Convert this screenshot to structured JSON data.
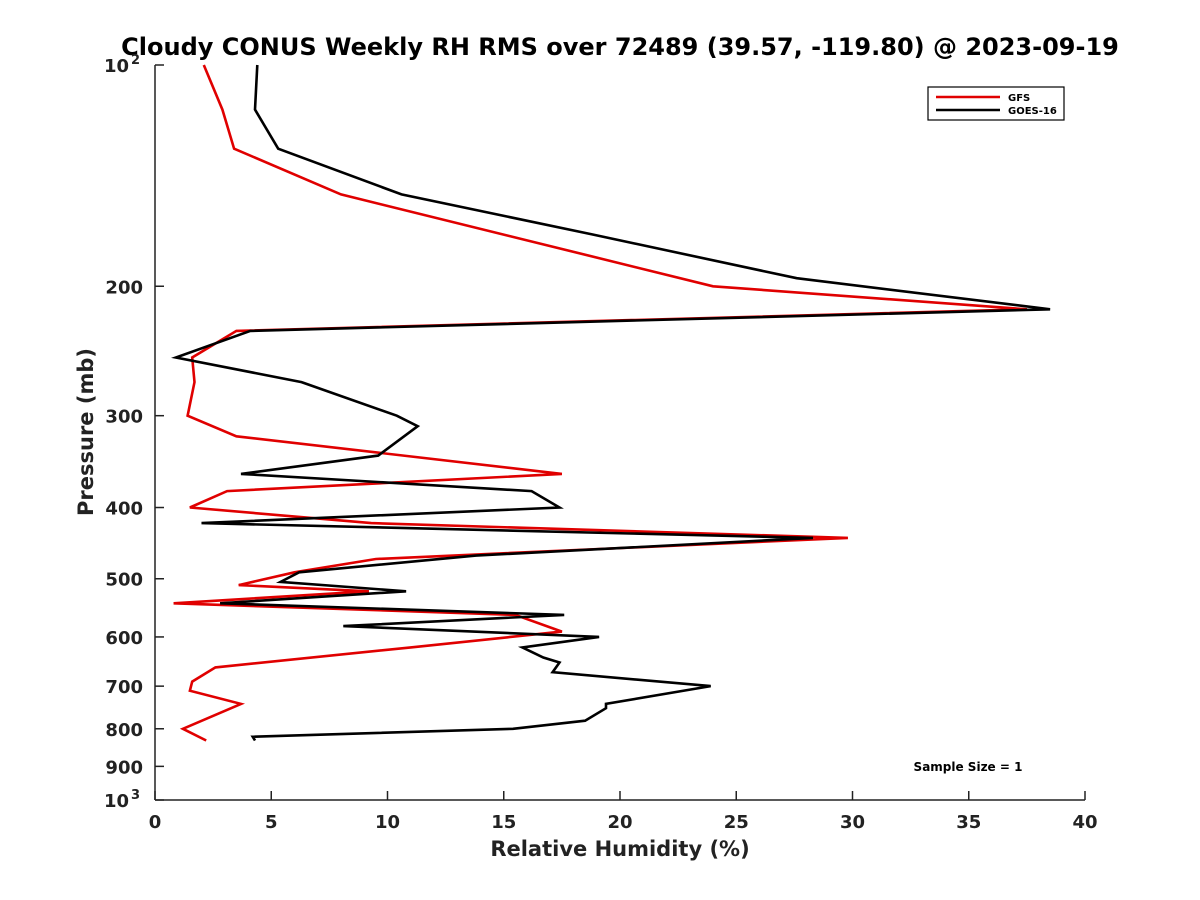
{
  "chart_data": {
    "type": "line",
    "title": "Cloudy CONUS Weekly RH RMS over 72489 (39.57, -119.80) @ 2023-09-19",
    "xlabel": "Relative Humidity (%)",
    "ylabel": "Pressure (mb)",
    "xlim": [
      0,
      40
    ],
    "ylim": [
      1000,
      100
    ],
    "yscale": "log",
    "ydirection": "reversed",
    "x_ticks": [
      "0",
      "5",
      "10",
      "15",
      "20",
      "25",
      "30",
      "35",
      "40"
    ],
    "y_ticks": [
      {
        "value": 100,
        "label": "10",
        "sup": "2"
      },
      {
        "value": 200,
        "label": "200"
      },
      {
        "value": 300,
        "label": "300"
      },
      {
        "value": 400,
        "label": "400"
      },
      {
        "value": 500,
        "label": "500"
      },
      {
        "value": 600,
        "label": "600"
      },
      {
        "value": 700,
        "label": "700"
      },
      {
        "value": 800,
        "label": "800"
      },
      {
        "value": 900,
        "label": "900"
      },
      {
        "value": 1000,
        "label": "10",
        "sup": "3"
      }
    ],
    "grid": false,
    "legend": "top-right",
    "annotation": "Sample Size = 1",
    "series": [
      {
        "name": "GFS",
        "color": "#e00000",
        "points": [
          {
            "x": 2.1,
            "p": 100
          },
          {
            "x": 2.9,
            "p": 115
          },
          {
            "x": 3.4,
            "p": 130
          },
          {
            "x": 8.0,
            "p": 150
          },
          {
            "x": 24.0,
            "p": 200
          },
          {
            "x": 37.5,
            "p": 215
          },
          {
            "x": 3.5,
            "p": 230
          },
          {
            "x": 1.6,
            "p": 250
          },
          {
            "x": 1.7,
            "p": 270
          },
          {
            "x": 1.4,
            "p": 300
          },
          {
            "x": 3.5,
            "p": 320
          },
          {
            "x": 17.5,
            "p": 360
          },
          {
            "x": 3.1,
            "p": 380
          },
          {
            "x": 1.5,
            "p": 400
          },
          {
            "x": 9.3,
            "p": 420
          },
          {
            "x": 29.8,
            "p": 440
          },
          {
            "x": 9.5,
            "p": 470
          },
          {
            "x": 6.0,
            "p": 490
          },
          {
            "x": 3.6,
            "p": 510
          },
          {
            "x": 9.2,
            "p": 520
          },
          {
            "x": 0.8,
            "p": 540
          },
          {
            "x": 15.5,
            "p": 560
          },
          {
            "x": 17.5,
            "p": 590
          },
          {
            "x": 11.0,
            "p": 620
          },
          {
            "x": 2.6,
            "p": 660
          },
          {
            "x": 1.6,
            "p": 690
          },
          {
            "x": 1.5,
            "p": 710
          },
          {
            "x": 3.7,
            "p": 740
          },
          {
            "x": 1.2,
            "p": 800
          },
          {
            "x": 2.2,
            "p": 830
          }
        ]
      },
      {
        "name": "GOES-16",
        "color": "#000000",
        "points": [
          {
            "x": 4.4,
            "p": 100
          },
          {
            "x": 4.3,
            "p": 115
          },
          {
            "x": 5.3,
            "p": 130
          },
          {
            "x": 10.6,
            "p": 150
          },
          {
            "x": 18.8,
            "p": 170
          },
          {
            "x": 27.6,
            "p": 195
          },
          {
            "x": 38.5,
            "p": 215
          },
          {
            "x": 4.1,
            "p": 230
          },
          {
            "x": 0.9,
            "p": 250
          },
          {
            "x": 6.3,
            "p": 270
          },
          {
            "x": 10.4,
            "p": 300
          },
          {
            "x": 11.3,
            "p": 310
          },
          {
            "x": 9.6,
            "p": 340
          },
          {
            "x": 3.7,
            "p": 360
          },
          {
            "x": 16.2,
            "p": 380
          },
          {
            "x": 17.4,
            "p": 400
          },
          {
            "x": 2.0,
            "p": 420
          },
          {
            "x": 28.3,
            "p": 440
          },
          {
            "x": 13.8,
            "p": 465
          },
          {
            "x": 6.2,
            "p": 490
          },
          {
            "x": 5.4,
            "p": 505
          },
          {
            "x": 10.8,
            "p": 520
          },
          {
            "x": 2.8,
            "p": 540
          },
          {
            "x": 17.6,
            "p": 560
          },
          {
            "x": 8.1,
            "p": 580
          },
          {
            "x": 19.1,
            "p": 600
          },
          {
            "x": 15.8,
            "p": 620
          },
          {
            "x": 16.7,
            "p": 640
          },
          {
            "x": 17.4,
            "p": 650
          },
          {
            "x": 17.1,
            "p": 670
          },
          {
            "x": 23.9,
            "p": 700
          },
          {
            "x": 19.4,
            "p": 740
          },
          {
            "x": 19.4,
            "p": 750
          },
          {
            "x": 18.5,
            "p": 780
          },
          {
            "x": 15.4,
            "p": 800
          },
          {
            "x": 4.2,
            "p": 820
          },
          {
            "x": 4.3,
            "p": 830
          }
        ]
      }
    ]
  }
}
